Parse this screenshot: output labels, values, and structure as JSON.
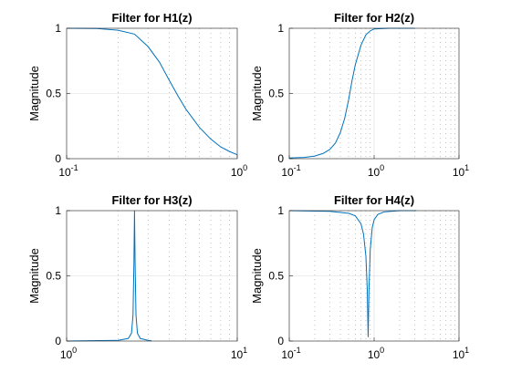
{
  "chart_data": [
    {
      "type": "line",
      "title": "Filter for H1(z)",
      "ylabel": "Magnitude",
      "xscale": "log",
      "xlim": [
        0.1,
        1
      ],
      "ylim": [
        0,
        1
      ],
      "xticks": [
        {
          "base": "10",
          "exp": "-1"
        },
        {
          "base": "10",
          "exp": "0"
        }
      ],
      "yticks": [
        "0",
        "0.5",
        "1"
      ],
      "grid": true,
      "color": "#0072BD",
      "series": [
        {
          "x": [
            0.1,
            0.15,
            0.2,
            0.25,
            0.3,
            0.35,
            0.4,
            0.45,
            0.5,
            0.6,
            0.7,
            0.8,
            0.9,
            1.0
          ],
          "y": [
            1.0,
            0.998,
            0.985,
            0.955,
            0.86,
            0.74,
            0.6,
            0.48,
            0.38,
            0.24,
            0.15,
            0.09,
            0.055,
            0.03
          ]
        }
      ]
    },
    {
      "type": "line",
      "title": "Filter for H2(z)",
      "ylabel": "Magnitude",
      "xscale": "log",
      "xlim": [
        0.1,
        10
      ],
      "ylim": [
        0,
        1
      ],
      "xticks": [
        {
          "base": "10",
          "exp": "-1"
        },
        {
          "base": "10",
          "exp": "0"
        },
        {
          "base": "10",
          "exp": "1"
        }
      ],
      "yticks": [
        "0",
        "0.5",
        "1"
      ],
      "grid": true,
      "color": "#0072BD",
      "series": [
        {
          "x": [
            0.1,
            0.15,
            0.2,
            0.25,
            0.3,
            0.35,
            0.4,
            0.45,
            0.5,
            0.55,
            0.6,
            0.7,
            0.8,
            0.9,
            1.0,
            1.5,
            2.0,
            3.0
          ],
          "y": [
            0.005,
            0.01,
            0.02,
            0.04,
            0.07,
            0.12,
            0.2,
            0.31,
            0.45,
            0.6,
            0.72,
            0.87,
            0.95,
            0.98,
            0.995,
            1.0,
            1.0,
            1.0
          ]
        }
      ]
    },
    {
      "type": "line",
      "title": "Filter for H3(z)",
      "ylabel": "Magnitude",
      "xscale": "log",
      "xlim": [
        1,
        10
      ],
      "ylim": [
        0,
        1
      ],
      "xticks": [
        {
          "base": "10",
          "exp": "0"
        },
        {
          "base": "10",
          "exp": "1"
        }
      ],
      "yticks": [
        "0",
        "0.5",
        "1"
      ],
      "grid": true,
      "color": "#0072BD",
      "series": [
        {
          "x": [
            1.0,
            2.0,
            2.3,
            2.4,
            2.45,
            2.48,
            2.5,
            2.52,
            2.55,
            2.6,
            2.7,
            3.0,
            3.14
          ],
          "y": [
            0.0,
            0.005,
            0.02,
            0.06,
            0.2,
            0.6,
            1.0,
            0.6,
            0.2,
            0.06,
            0.02,
            0.005,
            0.003
          ]
        }
      ]
    },
    {
      "type": "line",
      "title": "Filter for H4(z)",
      "ylabel": "Magnitude",
      "xscale": "log",
      "xlim": [
        0.1,
        10
      ],
      "ylim": [
        0,
        1
      ],
      "xticks": [
        {
          "base": "10",
          "exp": "-1"
        },
        {
          "base": "10",
          "exp": "0"
        },
        {
          "base": "10",
          "exp": "1"
        }
      ],
      "yticks": [
        "0",
        "0.5",
        "1"
      ],
      "grid": true,
      "color": "#0072BD",
      "series": [
        {
          "x": [
            0.1,
            0.3,
            0.5,
            0.6,
            0.7,
            0.75,
            0.8,
            0.83,
            0.85,
            0.87,
            0.9,
            0.95,
            1.0,
            1.1,
            1.3,
            2.0,
            3.14
          ],
          "y": [
            1.0,
            0.995,
            0.98,
            0.96,
            0.9,
            0.82,
            0.65,
            0.4,
            0.03,
            0.4,
            0.7,
            0.87,
            0.93,
            0.97,
            0.99,
            1.0,
            1.0
          ]
        }
      ]
    }
  ]
}
